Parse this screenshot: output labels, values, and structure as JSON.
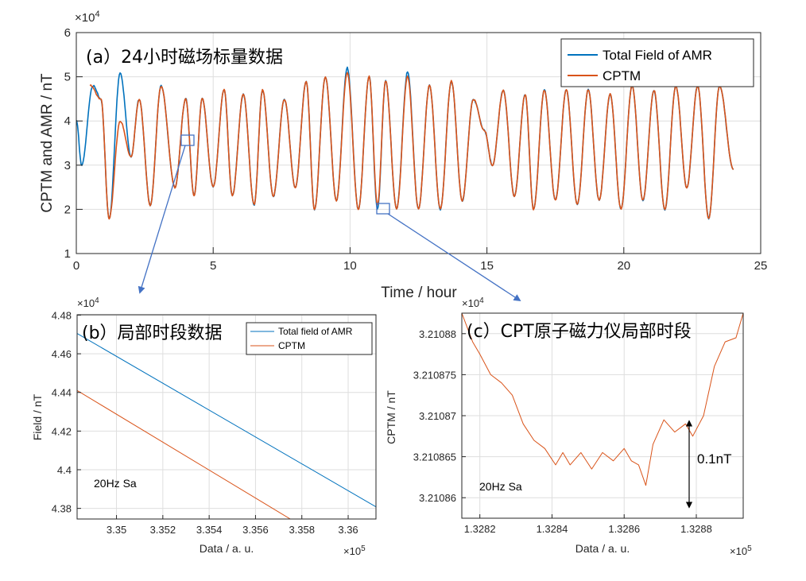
{
  "colors": {
    "amr": "#0072BD",
    "cptm": "#D95319",
    "grid": "#dedede",
    "axis": "#262626",
    "annot": "#4472C4"
  },
  "chart_data": [
    {
      "id": "a",
      "type": "line",
      "title": "(a）24小时磁场标量数据",
      "xlabel": "Time / hour",
      "ylabel": "CPTM and AMR / nT",
      "y_exponent": "×10^4",
      "xlim": [
        0,
        25
      ],
      "ylim": [
        1,
        6
      ],
      "xticks": [
        "0",
        "5",
        "10",
        "15",
        "20",
        "25"
      ],
      "yticks": [
        "1",
        "2",
        "3",
        "4",
        "5",
        "6"
      ],
      "grid": true,
      "legend_position": "top-right",
      "series": [
        {
          "name": "Total Field of AMR",
          "color": "#0072BD",
          "x": [
            0,
            0.2,
            0.6,
            0.9,
            1.2,
            1.6,
            2.0,
            2.3,
            2.7,
            3.1,
            3.6,
            4.0,
            4.3,
            4.6,
            5.0,
            5.4,
            5.7,
            6.1,
            6.5,
            6.8,
            7.2,
            7.6,
            8.0,
            8.4,
            8.7,
            9.1,
            9.5,
            9.9,
            10.3,
            10.7,
            11.0,
            11.3,
            11.7,
            12.1,
            12.5,
            12.9,
            13.3,
            13.7,
            14.1,
            14.5,
            14.9,
            15.2,
            15.6,
            16.0,
            16.4,
            16.7,
            17.1,
            17.5,
            17.9,
            18.3,
            18.7,
            19.1,
            19.5,
            19.9,
            20.3,
            20.7,
            21.1,
            21.5,
            21.9,
            22.3,
            22.7,
            23.1,
            23.5,
            24.0
          ],
          "values": [
            4.0,
            3.0,
            4.8,
            4.5,
            1.8,
            5.1,
            3.2,
            4.5,
            2.1,
            4.8,
            2.5,
            4.5,
            2.3,
            4.5,
            2.5,
            4.7,
            2.3,
            4.6,
            2.1,
            4.7,
            2.3,
            4.5,
            2.5,
            4.9,
            2.0,
            5.0,
            2.2,
            5.2,
            2.0,
            5.0,
            2.0,
            4.9,
            2.0,
            5.1,
            2.0,
            4.8,
            2.0,
            4.9,
            2.2,
            4.5,
            3.8,
            3.0,
            4.7,
            2.3,
            4.6,
            2.0,
            4.7,
            2.2,
            4.7,
            2.1,
            4.7,
            2.2,
            4.6,
            2.0,
            4.8,
            2.2,
            4.7,
            2.0,
            4.8,
            2.5,
            4.8,
            1.8,
            4.8,
            2.9
          ]
        },
        {
          "name": "CPTM",
          "color": "#D95319",
          "x": [
            0.5,
            0.9,
            1.2,
            1.6,
            2.0,
            2.3,
            2.7,
            3.1,
            3.6,
            4.0,
            4.3,
            4.6,
            5.0,
            5.4,
            5.7,
            6.1,
            6.5,
            6.8,
            7.2,
            7.6,
            8.0,
            8.4,
            8.7,
            9.1,
            9.5,
            9.9,
            10.3,
            10.7,
            11.0,
            11.3,
            11.7,
            12.1,
            12.5,
            12.9,
            13.3,
            13.7,
            14.1,
            14.5,
            14.9,
            15.2,
            15.6,
            16.0,
            16.4,
            16.7,
            17.1,
            17.5,
            17.9,
            18.3,
            18.7,
            19.1,
            19.5,
            19.9,
            20.3,
            20.7,
            21.1,
            21.5,
            21.9,
            22.3,
            22.7,
            23.1,
            23.5,
            24.0
          ],
          "values": [
            4.8,
            4.5,
            1.8,
            4.0,
            3.2,
            4.5,
            2.1,
            4.8,
            2.5,
            4.5,
            2.3,
            4.5,
            2.5,
            4.7,
            2.3,
            4.6,
            2.1,
            4.7,
            2.3,
            4.5,
            2.5,
            4.9,
            2.0,
            5.0,
            2.2,
            5.1,
            2.0,
            5.0,
            2.1,
            4.9,
            2.0,
            5.0,
            2.0,
            4.8,
            2.0,
            4.9,
            2.2,
            4.5,
            3.8,
            3.0,
            4.7,
            2.3,
            4.6,
            2.0,
            4.7,
            2.2,
            4.7,
            2.1,
            4.7,
            2.2,
            4.6,
            2.0,
            4.8,
            2.2,
            4.7,
            2.0,
            4.8,
            2.5,
            4.8,
            1.8,
            4.8,
            2.9
          ]
        }
      ],
      "zoom_boxes": [
        {
          "x": 4.1,
          "y": 3.6,
          "target": "b"
        },
        {
          "x": 11.3,
          "y": 2.0,
          "target": "c"
        }
      ]
    },
    {
      "id": "b",
      "type": "line",
      "title": "(b）局部时段数据",
      "xlabel": "Data / a. u.",
      "ylabel": "Field / nT",
      "x_exponent": "×10^5",
      "y_exponent": "×10^4",
      "xlim": [
        3.3483,
        3.3612
      ],
      "ylim": [
        4.3745,
        4.4802
      ],
      "xticks": [
        "3.35",
        "3.352",
        "3.354",
        "3.356",
        "3.358",
        "3.36"
      ],
      "yticks": [
        "4.38",
        "4.4",
        "4.42",
        "4.44",
        "4.46",
        "4.48"
      ],
      "grid": true,
      "legend_position": "top-right",
      "annotation": "20Hz Sa",
      "series": [
        {
          "name": "Total field of AMR",
          "color": "#0072BD",
          "x": [
            3.3483,
            3.3612
          ],
          "values": [
            4.4705,
            4.3808
          ]
        },
        {
          "name": "CPTM",
          "color": "#D95319",
          "x": [
            3.3483,
            3.3575
          ],
          "values": [
            4.441,
            4.3745
          ]
        }
      ]
    },
    {
      "id": "c",
      "type": "line",
      "title": "(c）CPT原子磁力仪局部时段",
      "xlabel": "Data / a. u.",
      "ylabel": "CPTM / nT",
      "x_exponent": "×10^5",
      "y_exponent": "×10^4",
      "xlim": [
        1.32815,
        1.32893
      ],
      "ylim": [
        3.2108575,
        3.2108825
      ],
      "xticks": [
        "1.3282",
        "1.3284",
        "1.3286",
        "1.3288"
      ],
      "yticks": [
        "3.21086",
        "3.210865",
        "3.21087",
        "3.210875",
        "3.21088"
      ],
      "grid": true,
      "annotation": "20Hz Sa",
      "scale_bar_label": "0.1nT",
      "series": [
        {
          "name": "CPTM",
          "color": "#D95319",
          "x": [
            1.32815,
            1.32818,
            1.3282,
            1.32823,
            1.32826,
            1.32829,
            1.32832,
            1.32835,
            1.32838,
            1.32841,
            1.32843,
            1.32845,
            1.32848,
            1.32851,
            1.32854,
            1.32857,
            1.3286,
            1.32862,
            1.32864,
            1.32866,
            1.32868,
            1.32871,
            1.32874,
            1.32877,
            1.32879,
            1.32882,
            1.32885,
            1.32888,
            1.32891,
            1.32893
          ],
          "values": [
            3.2108825,
            3.210879,
            3.2108775,
            3.210875,
            3.210874,
            3.2108725,
            3.210869,
            3.210867,
            3.210866,
            3.210864,
            3.2108655,
            3.210864,
            3.2108655,
            3.2108635,
            3.2108655,
            3.2108645,
            3.210866,
            3.2108645,
            3.210864,
            3.2108615,
            3.2108665,
            3.2108695,
            3.210868,
            3.210869,
            3.2108675,
            3.21087,
            3.210876,
            3.210879,
            3.2108795,
            3.2108825
          ]
        }
      ]
    }
  ]
}
